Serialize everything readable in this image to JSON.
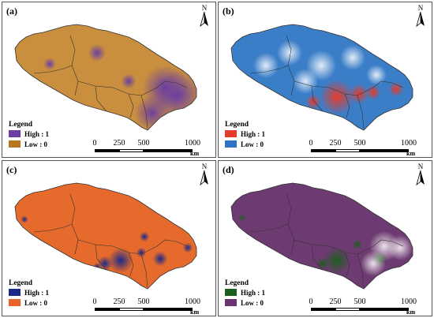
{
  "panels": [
    {
      "id": "a",
      "label": "(a)",
      "colors": {
        "high": "#6b3fa0",
        "low": "#b5761f",
        "land": "#c98f3e"
      },
      "legend": {
        "title": "Legend",
        "high": "High : 1",
        "low": "Low : 0"
      }
    },
    {
      "id": "b",
      "label": "(b)",
      "colors": {
        "high": "#e83a2a",
        "low": "#2f71c2",
        "land": "#3b7ec8"
      },
      "legend": {
        "title": "Legend",
        "high": "High : 1",
        "low": "Low : 0"
      }
    },
    {
      "id": "c",
      "label": "(c)",
      "colors": {
        "high": "#1a2a8a",
        "low": "#e8622a",
        "land": "#e66a2c"
      },
      "legend": {
        "title": "Legend",
        "high": "High : 1",
        "low": "Low : 0"
      }
    },
    {
      "id": "d",
      "label": "(d)",
      "colors": {
        "high": "#1c5e1c",
        "low": "#6a3470",
        "land": "#6e3a72"
      },
      "legend": {
        "title": "Legend",
        "high": "High : 1",
        "low": "Low : 0"
      }
    }
  ],
  "north": "N",
  "scale": {
    "ticks": [
      "0",
      "250",
      "500",
      "1000"
    ],
    "unit": "km"
  }
}
